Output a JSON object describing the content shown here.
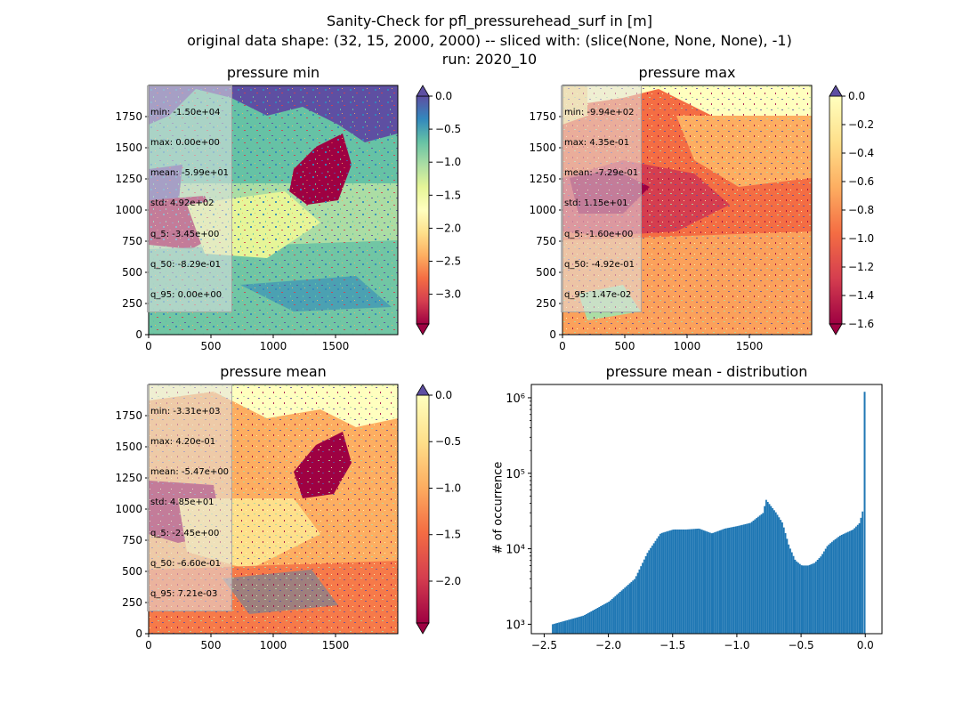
{
  "figure": {
    "suptitle_lines": [
      "Sanity-Check for pfl_pressurehead_surf in [m]",
      "original data shape: (32, 15, 2000, 2000) -- sliced with: (slice(None, None, None), -1)",
      "run: 2020_10"
    ]
  },
  "panels": [
    {
      "title": "pressure min",
      "colormap": "Spectral",
      "colorbar_ticks": [
        "0.0",
        "−0.5",
        "−1.0",
        "−1.5",
        "−2.0",
        "−2.5",
        "−3.0"
      ],
      "colorbar_range": [
        -3.45,
        0.0
      ],
      "colorbar_extend": "both",
      "stats": [
        "min: -1.50e+04",
        "max: 0.00e+00",
        "mean: -5.99e+01",
        "std: 4.92e+02",
        "q_5: -3.45e+00",
        "q_50: -8.29e-01",
        "q_95: 0.00e+00"
      ]
    },
    {
      "title": "pressure max",
      "colormap": "Spectral",
      "colorbar_ticks": [
        "0.0",
        "−0.2",
        "−0.4",
        "−0.6",
        "−0.8",
        "−1.0",
        "−1.2",
        "−1.4",
        "−1.6"
      ],
      "colorbar_range": [
        -1.6,
        0.0
      ],
      "colorbar_extend": "both",
      "stats": [
        "min: -9.94e+02",
        "max: 4.35e-01",
        "mean: -7.29e-01",
        "std: 1.15e+01",
        "q_5: -1.60e+00",
        "q_50: -4.92e-01",
        "q_95: 1.47e-02"
      ]
    },
    {
      "title": "pressure mean",
      "colormap": "Spectral",
      "colorbar_ticks": [
        "0.0",
        "−0.5",
        "−1.0",
        "−1.5",
        "−2.0"
      ],
      "colorbar_range": [
        -2.45,
        0.0
      ],
      "colorbar_extend": "both",
      "stats": [
        "min: -3.31e+03",
        "max: 4.20e-01",
        "mean: -5.47e+00",
        "std: 4.85e+01",
        "q_5: -2.45e+00",
        "q_50: -6.60e-01",
        "q_95: 7.21e-03"
      ]
    }
  ],
  "map_axes": {
    "x_ticks": [
      "0",
      "500",
      "1000",
      "1500"
    ],
    "y_ticks": [
      "0",
      "250",
      "500",
      "750",
      "1000",
      "1250",
      "1500",
      "1750"
    ],
    "extent": [
      0,
      2000
    ]
  },
  "chart_data": {
    "type": "bar",
    "title": "pressure mean - distribution",
    "xlabel": "",
    "ylabel": "# of occurrence",
    "y_scale": "log",
    "xlim": [
      -2.6,
      0.13
    ],
    "ylim": [
      750,
      1500000
    ],
    "x_ticks": [
      "−2.5",
      "−2.0",
      "−1.5",
      "−1.0",
      "−0.5",
      "0.0"
    ],
    "x_tick_values": [
      -2.5,
      -2.0,
      -1.5,
      -1.0,
      -0.5,
      0.0
    ],
    "y_ticks": [
      "10³",
      "10⁴",
      "10⁵",
      "10⁶"
    ],
    "y_tick_values": [
      1000,
      10000,
      100000,
      1000000
    ],
    "bar_color": "#1f77b4",
    "x": [
      -2.44,
      -2.2,
      -2.0,
      -1.8,
      -1.7,
      -1.6,
      -1.5,
      -1.4,
      -1.3,
      -1.2,
      -1.1,
      -1.0,
      -0.9,
      -0.8,
      -0.78,
      -0.7,
      -0.65,
      -0.6,
      -0.55,
      -0.5,
      -0.45,
      -0.4,
      -0.35,
      -0.3,
      -0.25,
      -0.2,
      -0.1,
      -0.05,
      -0.02,
      -0.005
    ],
    "values": [
      1000,
      1300,
      2000,
      4000,
      9000,
      16000,
      18000,
      18000,
      18500,
      16000,
      18500,
      20000,
      22000,
      30000,
      45000,
      30000,
      22000,
      11000,
      7000,
      6000,
      6000,
      6500,
      8000,
      11000,
      13000,
      15000,
      18000,
      22000,
      35000,
      1200000
    ]
  }
}
